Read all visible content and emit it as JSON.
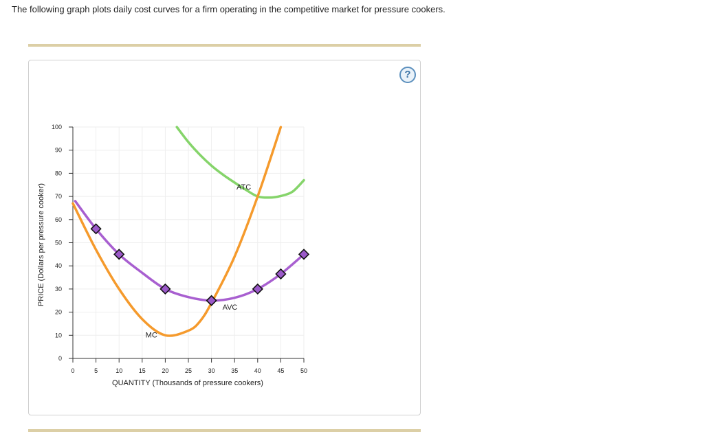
{
  "question": {
    "prompt": "The following graph plots daily cost curves for a firm operating in the competitive market for pressure cookers."
  },
  "help_button": {
    "label": "?",
    "icon": "question-mark-icon"
  },
  "colors": {
    "atc": "#85d46a",
    "avc": "#a85fd0",
    "mc": "#f59a2c",
    "point_fill": "#9b59c9",
    "grid": "#eeeeee"
  },
  "chart_data": {
    "type": "line",
    "xlabel": "QUANTITY (Thousands of pressure cookers)",
    "ylabel": "PRICE (Dollars per pressure cooker)",
    "xlim": [
      0,
      50
    ],
    "ylim": [
      0,
      100
    ],
    "xticks": [
      0,
      5,
      10,
      15,
      20,
      25,
      30,
      35,
      40,
      45,
      50
    ],
    "yticks": [
      0,
      10,
      20,
      30,
      40,
      50,
      60,
      70,
      80,
      90,
      100
    ],
    "grid": true,
    "series": [
      {
        "name": "ATC",
        "color": "#85d46a",
        "x": [
          22.5,
          25,
          27.5,
          30,
          32.5,
          35,
          37.5,
          40,
          42.5,
          45,
          47.5,
          50
        ],
        "y": [
          100,
          93.5,
          88,
          83.3,
          79.4,
          76,
          72.8,
          70,
          69.5,
          70.2,
          72,
          77
        ]
      },
      {
        "name": "AVC",
        "color": "#a85fd0",
        "x": [
          0.5,
          5,
          10,
          15,
          20,
          25,
          30,
          35,
          40,
          45,
          50
        ],
        "y": [
          68,
          56,
          45,
          37,
          30,
          26.5,
          25,
          26.2,
          30,
          36.5,
          45
        ],
        "markers": {
          "x": [
            5,
            10,
            20,
            30,
            40,
            45,
            50
          ],
          "y": [
            56,
            45,
            30,
            25,
            30,
            36.5,
            45
          ]
        }
      },
      {
        "name": "MC",
        "color": "#f59a2c",
        "x": [
          0,
          5,
          10,
          15,
          20,
          25,
          27.5,
          30,
          35,
          40,
          45
        ],
        "y": [
          67,
          47,
          30,
          17,
          10,
          12,
          16,
          24,
          44,
          70,
          100
        ]
      }
    ]
  }
}
